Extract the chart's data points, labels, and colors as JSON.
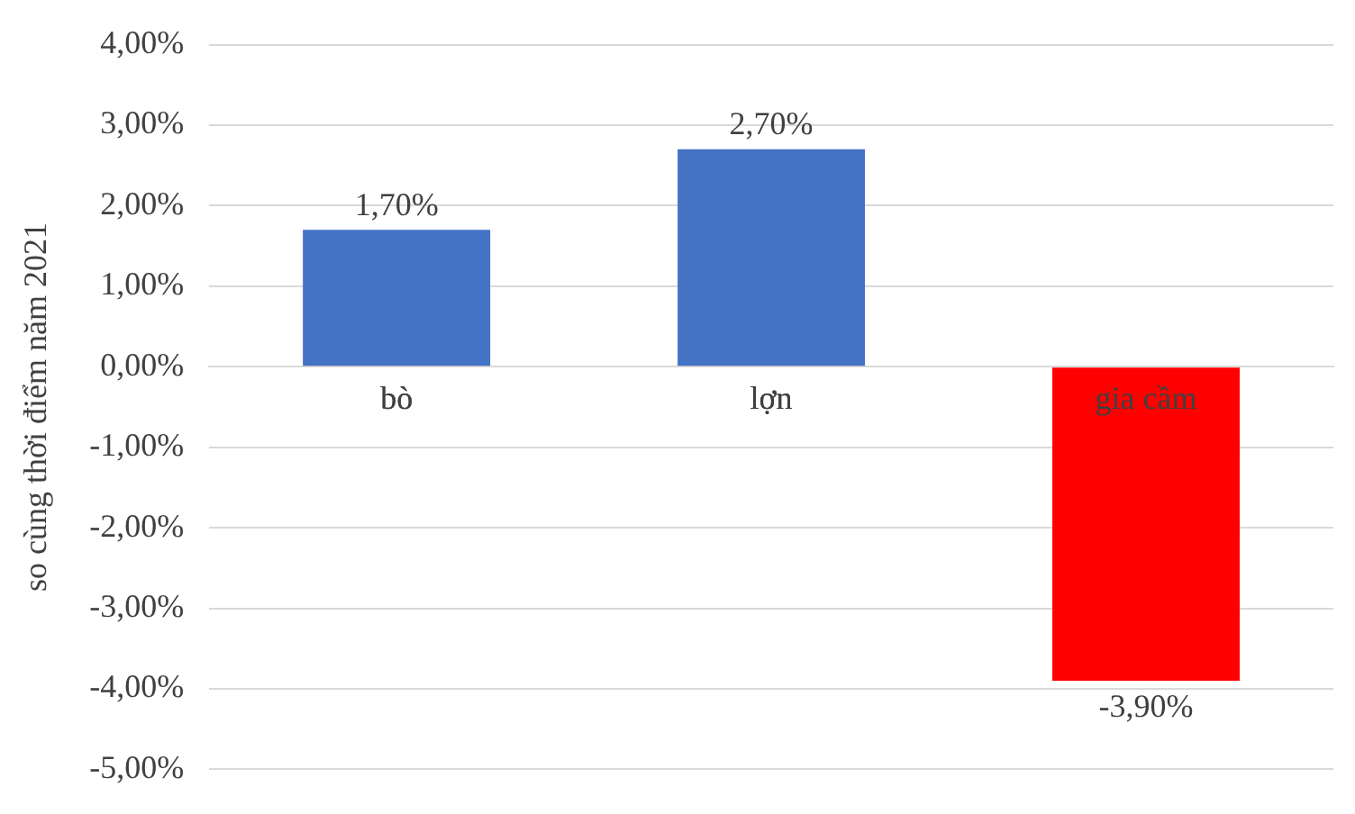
{
  "chart_data": {
    "type": "bar",
    "ylabel": "so cùng thời điểm năm 2021",
    "categories": [
      "bò",
      "lợn",
      "gia cầm"
    ],
    "values": [
      1.7,
      2.7,
      -3.9
    ],
    "colors": [
      "#4472c4",
      "#4472c4",
      "#ff0000"
    ],
    "value_labels": [
      "1,70%",
      "2,70%",
      "-3,90%"
    ],
    "ylim": [
      -5,
      4
    ],
    "yticks": [
      {
        "value": -5,
        "label": "-5,00%"
      },
      {
        "value": -4,
        "label": "-4,00%"
      },
      {
        "value": -3,
        "label": "-3,00%"
      },
      {
        "value": -2,
        "label": "-2,00%"
      },
      {
        "value": -1,
        "label": "-1,00%"
      },
      {
        "value": 0,
        "label": "0,00%"
      },
      {
        "value": 1,
        "label": "1,00%"
      },
      {
        "value": 2,
        "label": "2,00%"
      },
      {
        "value": 3,
        "label": "3,00%"
      },
      {
        "value": 4,
        "label": "4,00%"
      }
    ],
    "grid": "y",
    "legend": false
  }
}
